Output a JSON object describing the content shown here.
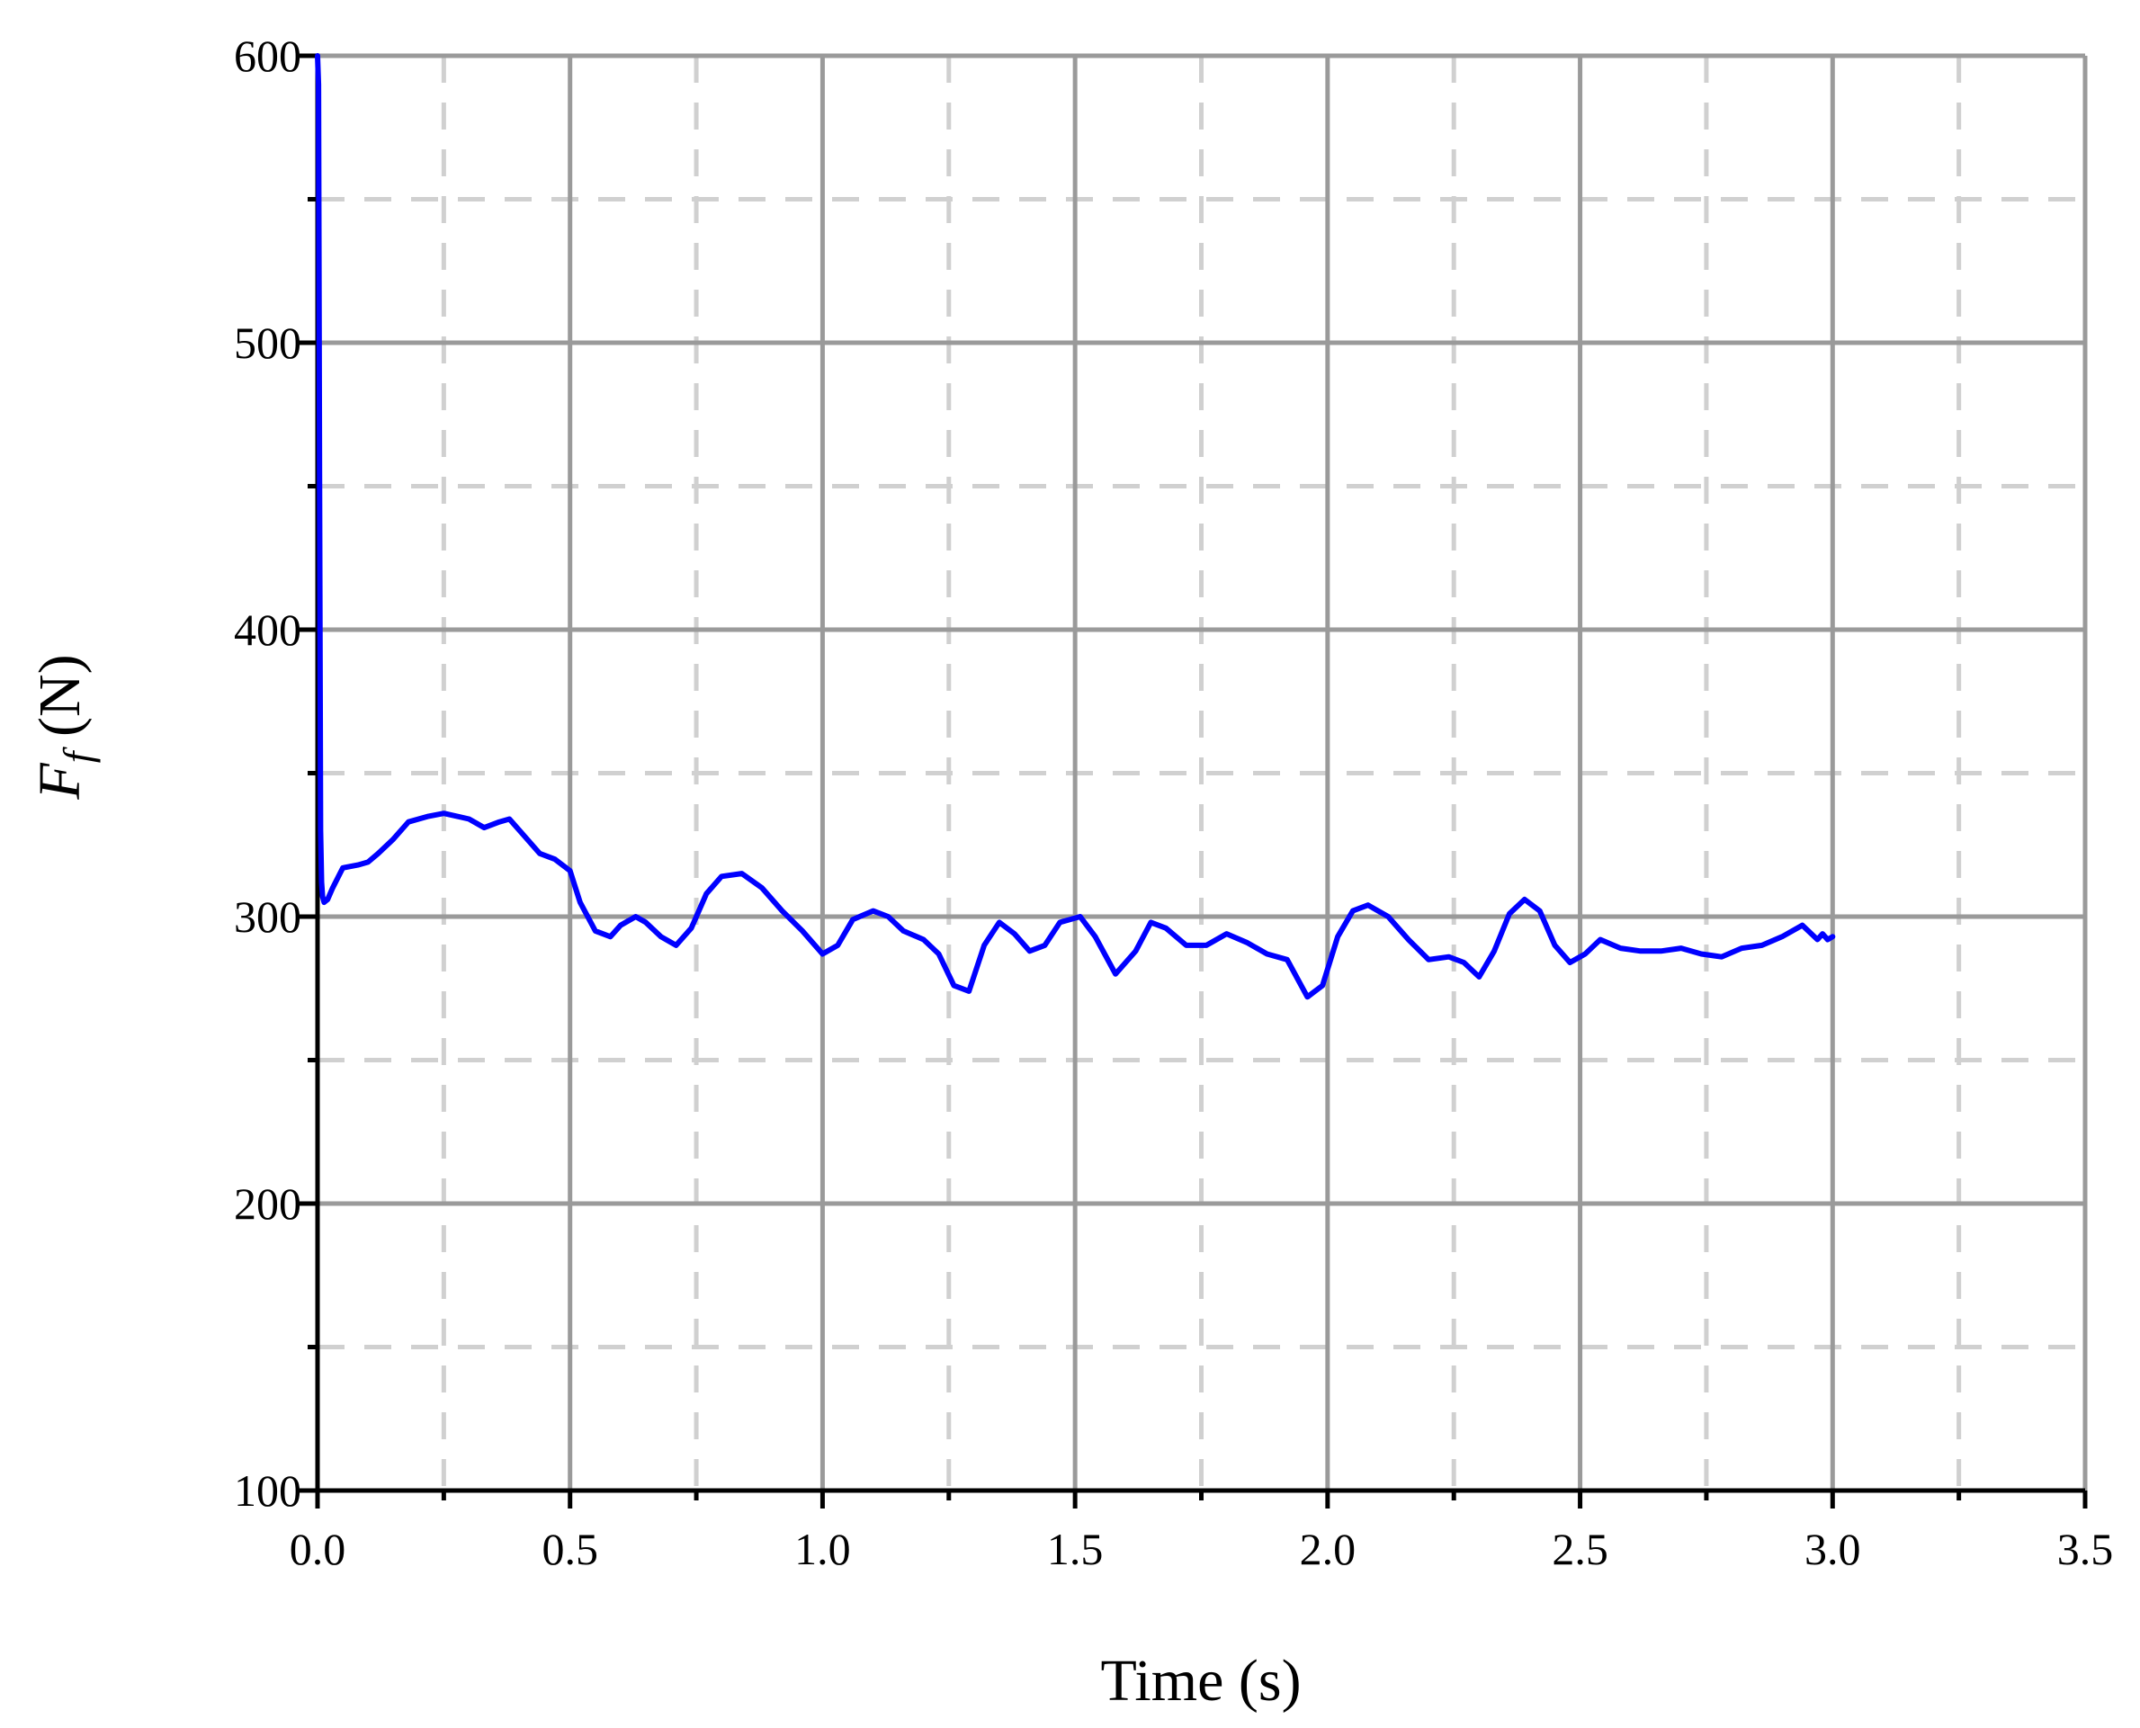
{
  "chart_data": {
    "type": "line",
    "title": "",
    "xlabel": "Time (s)",
    "ylabel": {
      "symbol": "F",
      "subscript": "f",
      "unit": " (N)"
    },
    "xlim": [
      0,
      3.5
    ],
    "ylim": [
      100,
      600
    ],
    "x_major_ticks": [
      0.0,
      0.5,
      1.0,
      1.5,
      2.0,
      2.5,
      3.0,
      3.5
    ],
    "x_tick_labels": [
      "0.0",
      "0.5",
      "1.0",
      "1.5",
      "2.0",
      "2.5",
      "3.0",
      "3.5"
    ],
    "x_minor_ticks": [
      0.25,
      0.75,
      1.25,
      1.75,
      2.25,
      2.75,
      3.25
    ],
    "y_major_ticks": [
      100,
      200,
      300,
      400,
      500,
      600
    ],
    "y_tick_labels": [
      "100",
      "200",
      "300",
      "400",
      "500",
      "600"
    ],
    "y_minor_ticks": [
      150,
      250,
      350,
      450,
      550
    ],
    "grid": {
      "major": true,
      "minor": true,
      "major_color": "#9a9a9a",
      "minor_color": "#d0d0d0"
    },
    "axis_color": "#000000",
    "series": [
      {
        "color": "#0000ff",
        "x": [
          0.0,
          0.002,
          0.004,
          0.006,
          0.008,
          0.01,
          0.013,
          0.02,
          0.03,
          0.05,
          0.08,
          0.1,
          0.12,
          0.15,
          0.18,
          0.22,
          0.25,
          0.3,
          0.33,
          0.36,
          0.38,
          0.41,
          0.44,
          0.47,
          0.5,
          0.52,
          0.55,
          0.58,
          0.6,
          0.63,
          0.65,
          0.68,
          0.71,
          0.74,
          0.77,
          0.8,
          0.84,
          0.88,
          0.92,
          0.96,
          1.0,
          1.03,
          1.06,
          1.1,
          1.13,
          1.16,
          1.2,
          1.23,
          1.26,
          1.29,
          1.32,
          1.35,
          1.38,
          1.41,
          1.44,
          1.47,
          1.51,
          1.54,
          1.58,
          1.62,
          1.65,
          1.68,
          1.72,
          1.76,
          1.8,
          1.84,
          1.88,
          1.92,
          1.96,
          1.99,
          2.02,
          2.05,
          2.08,
          2.12,
          2.16,
          2.2,
          2.24,
          2.27,
          2.3,
          2.33,
          2.36,
          2.39,
          2.42,
          2.45,
          2.48,
          2.51,
          2.54,
          2.58,
          2.62,
          2.66,
          2.7,
          2.74,
          2.78,
          2.82,
          2.86,
          2.9,
          2.94,
          2.97,
          2.98,
          2.99,
          3.0
        ],
        "y": [
          600,
          590,
          455,
          330,
          312,
          307,
          305,
          306,
          310,
          317,
          318,
          319,
          322,
          327,
          333,
          335,
          336,
          334,
          331,
          333,
          334,
          328,
          322,
          320,
          316,
          305,
          295,
          293,
          297,
          300,
          298,
          293,
          290,
          296,
          308,
          314,
          315,
          310,
          302,
          295,
          287,
          290,
          299,
          302,
          300,
          295,
          292,
          287,
          276,
          274,
          290,
          298,
          294,
          288,
          290,
          298,
          300,
          293,
          280,
          288,
          298,
          296,
          290,
          290,
          294,
          291,
          287,
          285,
          272,
          276,
          293,
          302,
          304,
          300,
          292,
          285,
          286,
          284,
          279,
          288,
          301,
          306,
          302,
          290,
          284,
          287,
          292,
          289,
          288,
          288,
          289,
          287,
          286,
          289,
          290,
          293,
          297,
          292,
          294,
          292,
          293
        ]
      }
    ]
  }
}
